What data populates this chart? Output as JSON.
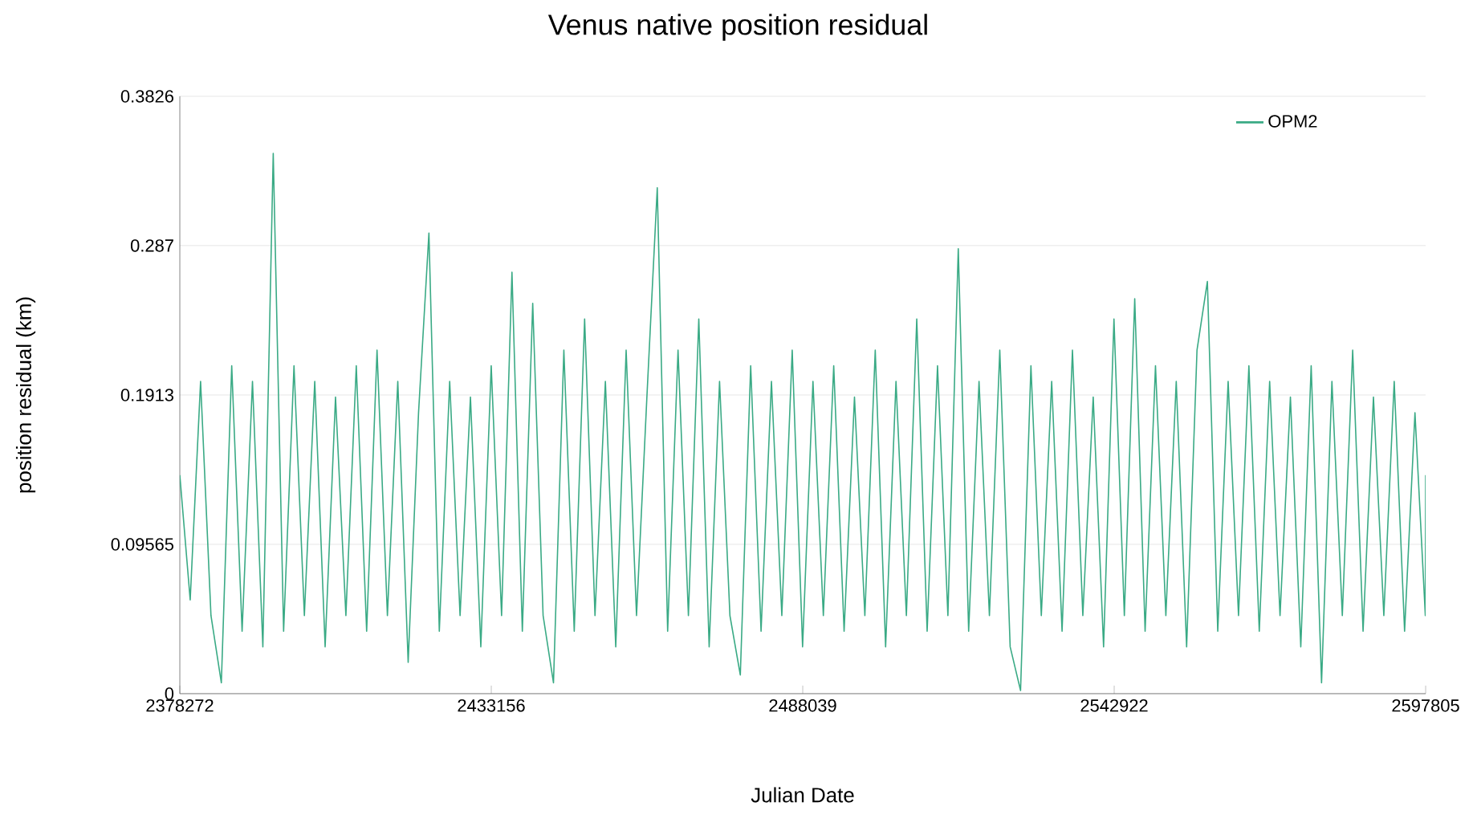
{
  "chart_data": {
    "type": "line",
    "title": "Venus native position residual",
    "xlabel": "Julian Date",
    "ylabel": "position residual (km)",
    "xlim": [
      2378272,
      2597805
    ],
    "ylim": [
      0,
      0.3826
    ],
    "xticks": [
      2378272,
      2433156,
      2488039,
      2542922,
      2597805
    ],
    "yticks": [
      0,
      0.09565,
      0.1913,
      0.287,
      0.3826
    ],
    "grid": "y",
    "legend": "top right",
    "marker": "none",
    "line_style": "solid",
    "x": [
      2378272,
      2380101,
      2381930,
      2383759,
      2385588,
      2387417,
      2389246,
      2391075,
      2392904,
      2394733,
      2396562,
      2398391,
      2400220,
      2402049,
      2403878,
      2405707,
      2407536,
      2409365,
      2411194,
      2413023,
      2414852,
      2416681,
      2418510,
      2420339,
      2422168,
      2423997,
      2425826,
      2427655,
      2429484,
      2431313,
      2433142,
      2434971,
      2436800,
      2438629,
      2440458,
      2442287,
      2444116,
      2445945,
      2447774,
      2449603,
      2451432,
      2453261,
      2455090,
      2456919,
      2458748,
      2460577,
      2462406,
      2464235,
      2466064,
      2467893,
      2469722,
      2471551,
      2473380,
      2475209,
      2477038,
      2478867,
      2480696,
      2482525,
      2484354,
      2486183,
      2488012,
      2489841,
      2491670,
      2493499,
      2495328,
      2497157,
      2498986,
      2500815,
      2502644,
      2504473,
      2506302,
      2508131,
      2509960,
      2511789,
      2513618,
      2515447,
      2517276,
      2519105,
      2520934,
      2522763,
      2524592,
      2526421,
      2528250,
      2530079,
      2531908,
      2533737,
      2535566,
      2537395,
      2539224,
      2541053,
      2542882,
      2544711,
      2546540,
      2548369,
      2550198,
      2552027,
      2553856,
      2555685,
      2557514,
      2559343,
      2561172,
      2563001,
      2564830,
      2566659,
      2568488,
      2570317,
      2572146,
      2573975,
      2575804,
      2577633,
      2579462,
      2581291,
      2583120,
      2584949,
      2586778,
      2588607,
      2590436,
      2592265,
      2594094,
      2595923,
      2597752,
      2597805
    ],
    "series": [
      {
        "name": "OPM2",
        "color": "#3aaa85",
        "values": [
          0.14,
          0.06,
          0.2,
          0.05,
          0.007,
          0.21,
          0.04,
          0.2,
          0.03,
          0.346,
          0.04,
          0.21,
          0.05,
          0.2,
          0.03,
          0.19,
          0.05,
          0.21,
          0.04,
          0.22,
          0.05,
          0.2,
          0.02,
          0.18,
          0.295,
          0.04,
          0.2,
          0.05,
          0.19,
          0.03,
          0.21,
          0.05,
          0.27,
          0.04,
          0.25,
          0.05,
          0.007,
          0.22,
          0.04,
          0.24,
          0.05,
          0.2,
          0.03,
          0.22,
          0.05,
          0.19,
          0.324,
          0.04,
          0.22,
          0.05,
          0.24,
          0.03,
          0.2,
          0.05,
          0.012,
          0.21,
          0.04,
          0.2,
          0.05,
          0.22,
          0.03,
          0.2,
          0.05,
          0.21,
          0.04,
          0.19,
          0.05,
          0.22,
          0.03,
          0.2,
          0.05,
          0.24,
          0.04,
          0.21,
          0.05,
          0.285,
          0.04,
          0.2,
          0.05,
          0.22,
          0.03,
          0.002,
          0.21,
          0.05,
          0.2,
          0.04,
          0.22,
          0.05,
          0.19,
          0.03,
          0.24,
          0.05,
          0.253,
          0.04,
          0.21,
          0.05,
          0.2,
          0.03,
          0.22,
          0.264,
          0.04,
          0.2,
          0.05,
          0.21,
          0.04,
          0.2,
          0.05,
          0.19,
          0.03,
          0.21,
          0.007,
          0.2,
          0.05,
          0.22,
          0.04,
          0.19,
          0.05,
          0.2,
          0.04,
          0.18,
          0.05,
          0.14
        ]
      }
    ]
  }
}
